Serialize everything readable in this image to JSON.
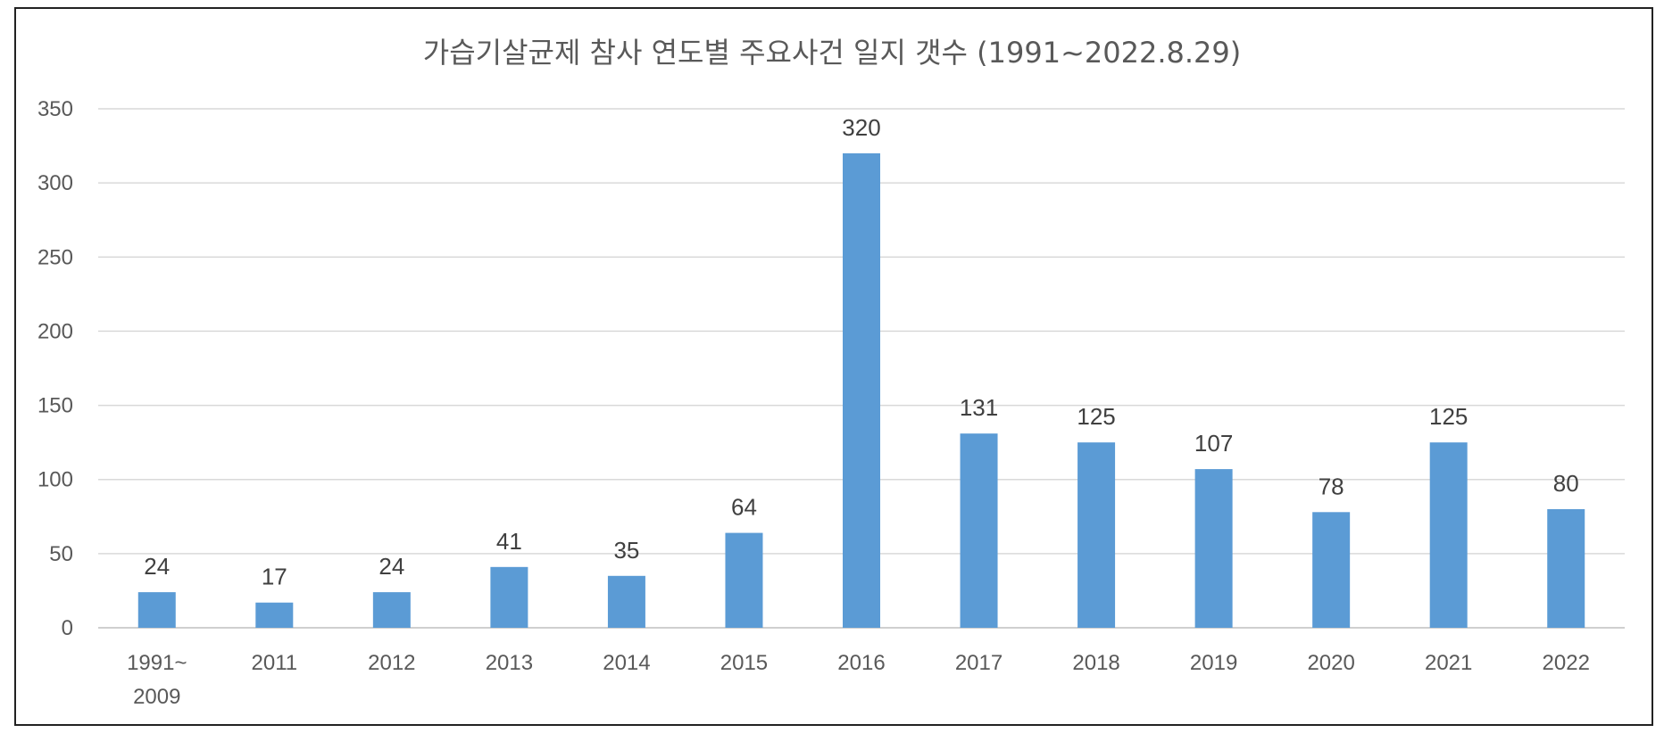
{
  "chart_data": {
    "type": "bar",
    "title": "가습기살균제 참사 연도별 주요사건 일지 갯수 (1991~2022.8.29)",
    "categories": [
      [
        "1991~",
        "2009"
      ],
      [
        "2011"
      ],
      [
        "2012"
      ],
      [
        "2013"
      ],
      [
        "2014"
      ],
      [
        "2015"
      ],
      [
        "2016"
      ],
      [
        "2017"
      ],
      [
        "2018"
      ],
      [
        "2019"
      ],
      [
        "2020"
      ],
      [
        "2021"
      ],
      [
        "2022"
      ]
    ],
    "values": [
      24,
      17,
      24,
      41,
      35,
      64,
      320,
      131,
      125,
      107,
      78,
      125,
      80
    ],
    "ylim": [
      0,
      350
    ],
    "yticks": [
      0,
      50,
      100,
      150,
      200,
      250,
      300,
      350
    ],
    "grid": true,
    "legend": "none",
    "bar_color": "#5b9bd5"
  }
}
